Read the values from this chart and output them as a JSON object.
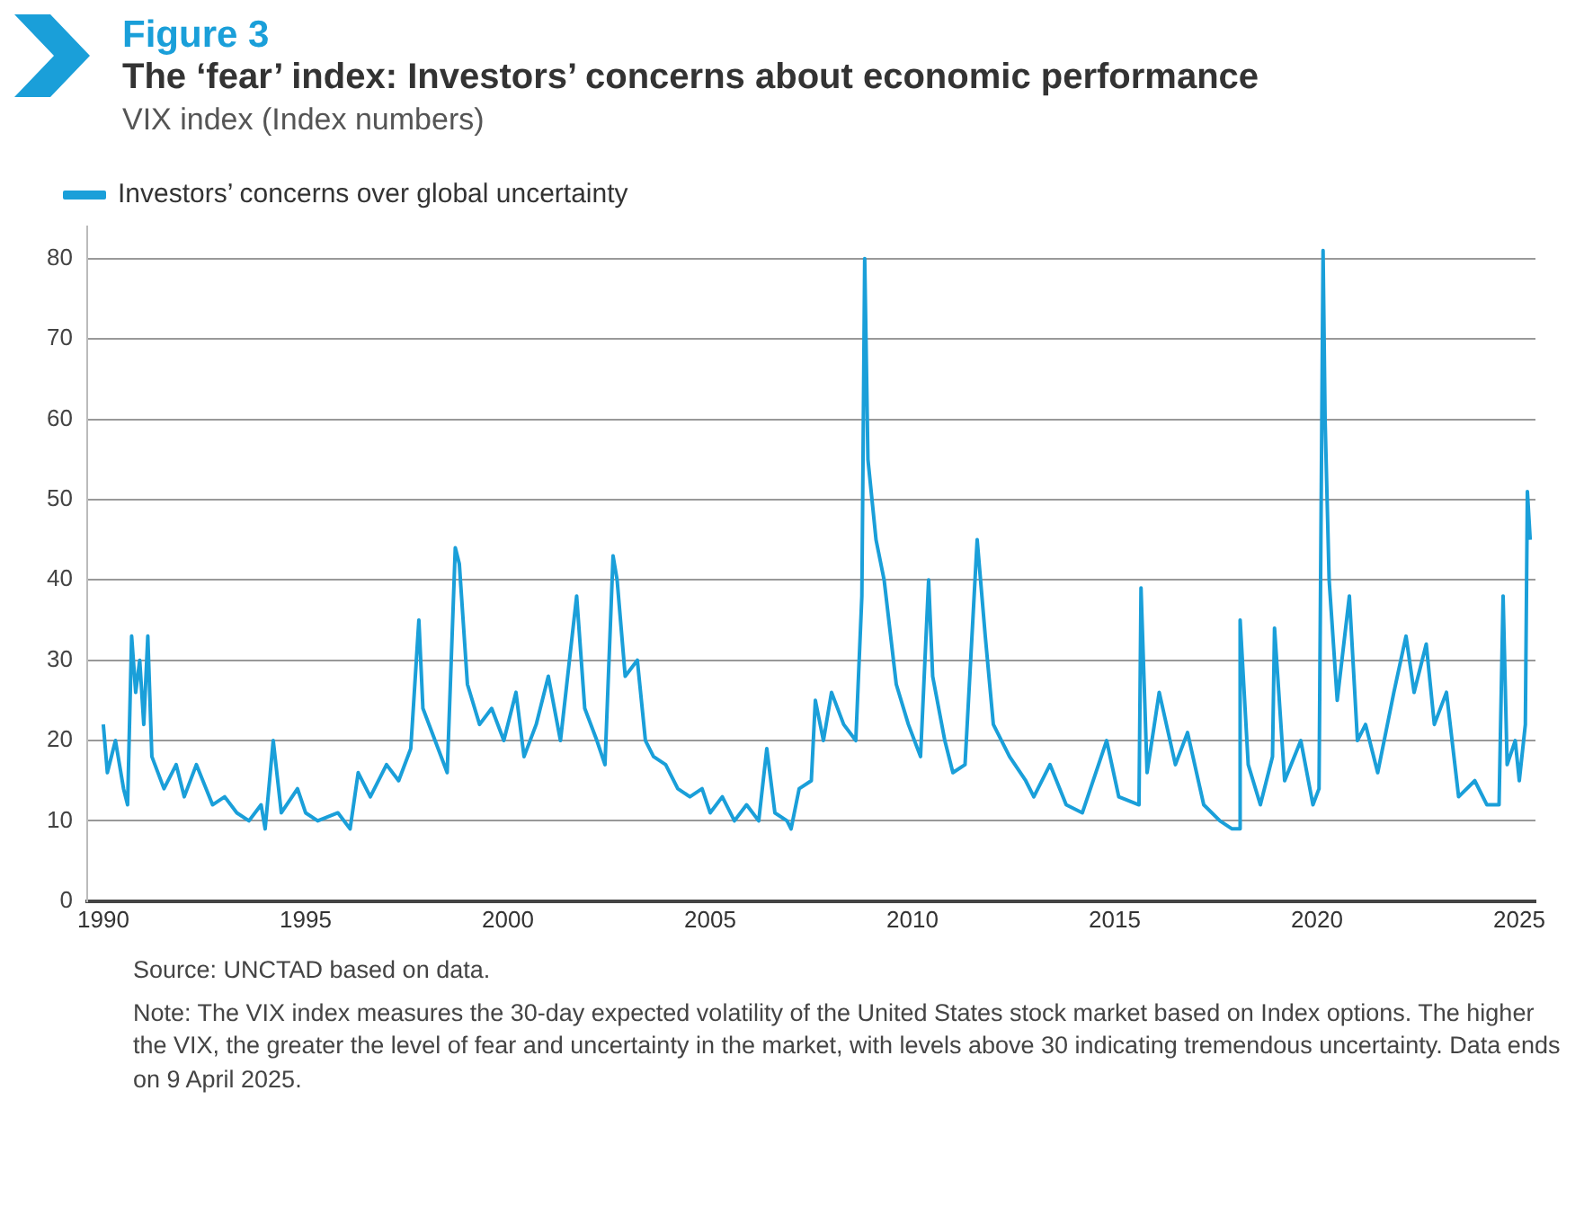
{
  "chart_data": {
    "type": "line",
    "title": "Figure 3",
    "subtitle": "The ‘fear’ index: Investors’ concerns about economic performance",
    "ylabel": "VIX index (Index numbers)",
    "x": [
      1990.0,
      1990.1,
      1990.3,
      1990.5,
      1990.6,
      1990.7,
      1990.8,
      1990.9,
      1991.0,
      1991.1,
      1991.2,
      1991.5,
      1991.8,
      1992.0,
      1992.3,
      1992.7,
      1993.0,
      1993.3,
      1993.6,
      1993.9,
      1994.0,
      1994.2,
      1994.4,
      1994.8,
      1995.0,
      1995.3,
      1995.8,
      1996.1,
      1996.3,
      1996.6,
      1997.0,
      1997.3,
      1997.6,
      1997.8,
      1997.9,
      1998.2,
      1998.5,
      1998.7,
      1998.8,
      1999.0,
      1999.3,
      1999.6,
      1999.9,
      2000.2,
      2000.4,
      2000.7,
      2001.0,
      2001.3,
      2001.7,
      2001.9,
      2002.2,
      2002.4,
      2002.6,
      2002.7,
      2002.9,
      2003.2,
      2003.4,
      2003.6,
      2003.9,
      2004.2,
      2004.5,
      2004.8,
      2005.0,
      2005.3,
      2005.6,
      2005.9,
      2006.2,
      2006.4,
      2006.6,
      2006.9,
      2007.0,
      2007.2,
      2007.5,
      2007.6,
      2007.8,
      2008.0,
      2008.3,
      2008.6,
      2008.75,
      2008.82,
      2008.9,
      2009.1,
      2009.3,
      2009.6,
      2009.9,
      2010.2,
      2010.4,
      2010.5,
      2010.8,
      2011.0,
      2011.3,
      2011.6,
      2011.8,
      2012.0,
      2012.4,
      2012.8,
      2013.0,
      2013.4,
      2013.8,
      2014.2,
      2014.8,
      2015.1,
      2015.6,
      2015.65,
      2015.8,
      2016.1,
      2016.5,
      2016.8,
      2017.2,
      2017.6,
      2017.9,
      2018.08,
      2018.1,
      2018.3,
      2018.6,
      2018.9,
      2018.95,
      2019.2,
      2019.6,
      2019.9,
      2020.05,
      2020.15,
      2020.2,
      2020.3,
      2020.5,
      2020.8,
      2021.0,
      2021.2,
      2021.5,
      2021.9,
      2022.2,
      2022.4,
      2022.7,
      2022.9,
      2023.2,
      2023.5,
      2023.9,
      2024.2,
      2024.5,
      2024.6,
      2024.7,
      2024.9,
      2025.0,
      2025.15,
      2025.2,
      2025.27
    ],
    "series": [
      {
        "name": "Investors’ concerns over global uncertainty",
        "color": "#1a9fd9",
        "values": [
          22,
          16,
          20,
          14,
          12,
          33,
          26,
          30,
          22,
          33,
          18,
          14,
          17,
          13,
          17,
          12,
          13,
          11,
          10,
          12,
          9,
          20,
          11,
          14,
          11,
          10,
          11,
          9,
          16,
          13,
          17,
          15,
          19,
          35,
          24,
          20,
          16,
          44,
          42,
          27,
          22,
          24,
          20,
          26,
          18,
          22,
          28,
          20,
          38,
          24,
          20,
          17,
          43,
          40,
          28,
          30,
          20,
          18,
          17,
          14,
          13,
          14,
          11,
          13,
          10,
          12,
          10,
          19,
          11,
          10,
          9,
          14,
          15,
          25,
          20,
          26,
          22,
          20,
          38,
          80,
          55,
          45,
          40,
          27,
          22,
          18,
          40,
          28,
          20,
          16,
          17,
          45,
          33,
          22,
          18,
          15,
          13,
          17,
          12,
          11,
          20,
          13,
          12,
          39,
          16,
          26,
          17,
          21,
          12,
          10,
          9,
          9,
          35,
          17,
          12,
          18,
          34,
          15,
          20,
          12,
          14,
          81,
          60,
          40,
          25,
          38,
          20,
          22,
          16,
          26,
          33,
          26,
          32,
          22,
          26,
          13,
          15,
          12,
          12,
          38,
          17,
          20,
          15,
          22,
          51,
          45
        ]
      }
    ],
    "ylim": [
      0,
      84
    ],
    "yticks": [
      0,
      10,
      20,
      30,
      40,
      50,
      60,
      70,
      80
    ],
    "xlim": [
      1989.6,
      2025.4
    ],
    "xticks": [
      1990,
      1995,
      2000,
      2005,
      2010,
      2015,
      2020,
      2025
    ],
    "grid": "y",
    "legend": "top left",
    "marker": "none",
    "line_style": "solid",
    "annotations": [
      "Source: UNCTAD based on data.",
      "Note: The VIX index measures the 30-day expected volatility of the United States stock market based on Index options. The higher the VIX, the greater the level of fear and uncertainty in the market, with levels above 30 indicating tremendous uncertainty. Data ends on 9 April 2025."
    ]
  }
}
